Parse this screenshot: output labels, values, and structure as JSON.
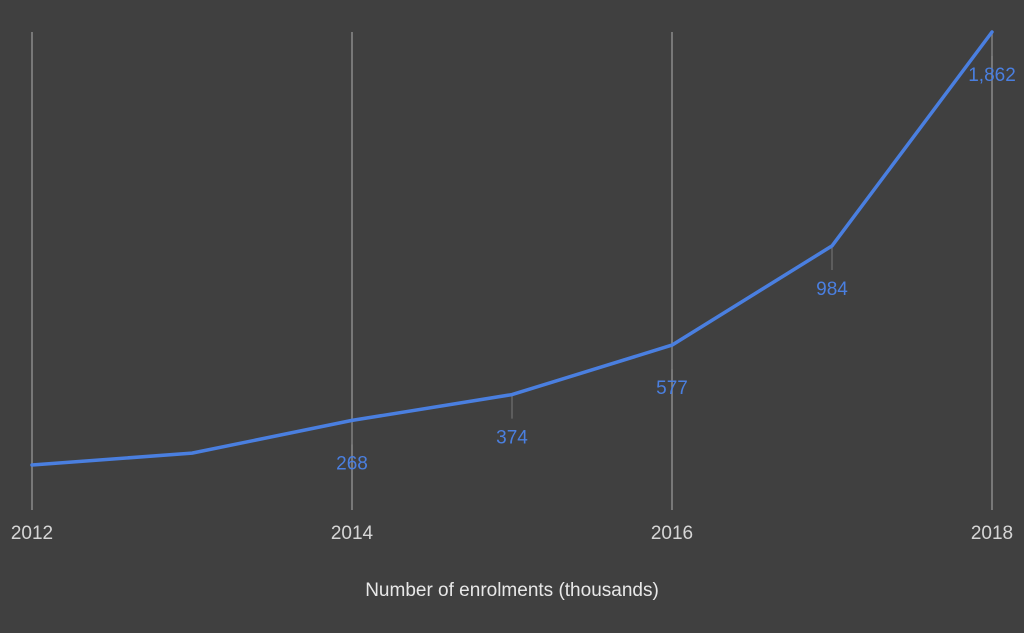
{
  "chart_data": {
    "type": "line",
    "xlabel": "Number of enrolments (thousands)",
    "ylabel": "",
    "x": [
      2012,
      2013,
      2014,
      2015,
      2016,
      2017,
      2018
    ],
    "x_ticks": [
      "2012",
      "2014",
      "2016",
      "2018"
    ],
    "series": [
      {
        "values": [
          85,
          134,
          268,
          374,
          577,
          984,
          1862
        ],
        "data_labels": [
          null,
          null,
          "268",
          "374",
          "577",
          "984",
          "1,862"
        ]
      }
    ],
    "xlim": [
      2012,
      2018
    ],
    "ylim": [
      0,
      1862
    ],
    "grid": "vertical",
    "legend": "none",
    "colors": {
      "background": "#404040",
      "line": "#4a7fe0",
      "gridline": "#8a8a8a",
      "tick_text": "#d6d6d6"
    }
  }
}
